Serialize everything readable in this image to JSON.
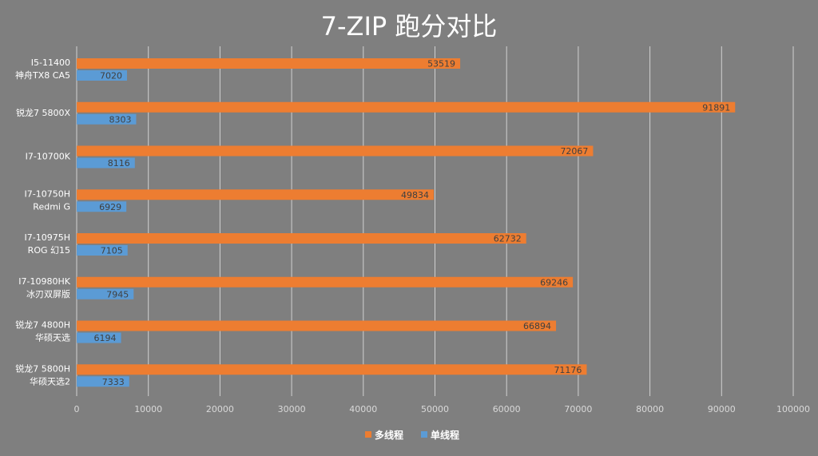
{
  "chart_data": {
    "type": "bar",
    "orientation": "horizontal",
    "title": "7-ZIP 跑分对比",
    "xlabel": "",
    "ylabel": "",
    "xlim": [
      0,
      100000
    ],
    "ticks": [
      "0",
      "10000",
      "20000",
      "30000",
      "40000",
      "50000",
      "60000",
      "70000",
      "80000",
      "90000",
      "100000"
    ],
    "grid": true,
    "legend_position": "bottom",
    "categories": [
      [
        "I5-11400",
        "神舟TX8 CA5"
      ],
      [
        "锐龙7 5800X"
      ],
      [
        "I7-10700K"
      ],
      [
        "I7-10750H",
        "Redmi G"
      ],
      [
        "I7-10975H",
        "ROG 幻15"
      ],
      [
        "I7-10980HK",
        "冰刃双屏版"
      ],
      [
        "锐龙7 4800H",
        "华硕天选"
      ],
      [
        "锐龙7 5800H",
        "华硕天选2"
      ]
    ],
    "series": [
      {
        "name": "多线程",
        "color": "#ed7d31",
        "values": [
          53519,
          91891,
          72067,
          49834,
          62732,
          69246,
          66894,
          71176
        ]
      },
      {
        "name": "单线程",
        "color": "#5b9bd5",
        "values": [
          7020,
          8303,
          8116,
          6929,
          7105,
          7945,
          6194,
          7333
        ]
      }
    ]
  }
}
